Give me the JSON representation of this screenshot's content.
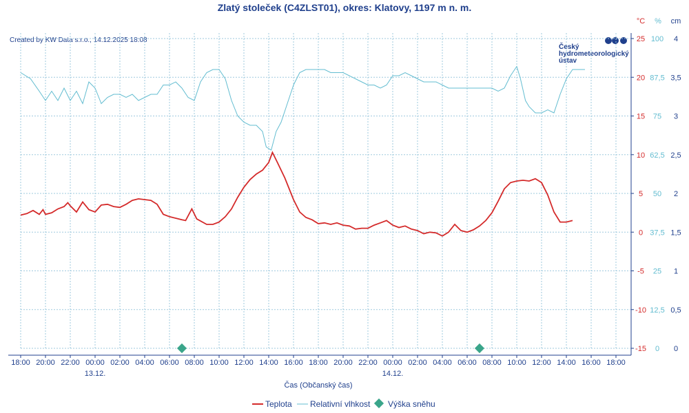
{
  "header": {
    "title": "Zlatý stoleček (C4ZLST01), okres: Klatovy, 1197 m n. m.",
    "created": "Created by KW Data s.r.o., 14.12.2025 18:08",
    "logo_line1": "Český",
    "logo_line2": "hydrometeorologický",
    "logo_line3": "ústav",
    "unit_temp": "°C",
    "unit_hum": "%",
    "unit_snow": "cm"
  },
  "colors": {
    "temp": "#d42a2a",
    "hum": "#62bcd0",
    "snow": "#3aa58a",
    "text": "#1f3f8c",
    "grid": "#9ec9de"
  },
  "chart_data": {
    "type": "line",
    "xlabel": "Čas (Občanský čas)",
    "x_ticks": [
      "18:00",
      "20:00",
      "22:00",
      "00:00",
      "02:00",
      "04:00",
      "06:00",
      "08:00",
      "10:00",
      "12:00",
      "14:00",
      "16:00",
      "18:00",
      "20:00",
      "22:00",
      "00:00",
      "02:00",
      "04:00",
      "06:00",
      "08:00",
      "10:00",
      "12:00",
      "14:00",
      "16:00",
      "18:00"
    ],
    "date_labels": [
      {
        "tick_index": 3,
        "text": "13.12."
      },
      {
        "tick_index": 15,
        "text": "14.12."
      }
    ],
    "x_range_hours": [
      0,
      48
    ],
    "y_axes": {
      "temp": {
        "label": "°C",
        "range": [
          -15,
          25
        ],
        "ticks": [
          "25",
          "20",
          "15",
          "10",
          "5",
          "0",
          "-5",
          "-10",
          "-15"
        ]
      },
      "hum": {
        "label": "%",
        "range": [
          0,
          100
        ],
        "ticks": [
          "100",
          "87,5",
          "75",
          "62,5",
          "50",
          "37,5",
          "25",
          "12,5",
          "0"
        ]
      },
      "snow": {
        "label": "cm",
        "range": [
          0,
          4
        ],
        "ticks": [
          "4",
          "3,5",
          "3",
          "2,5",
          "2",
          "1,5",
          "1",
          "0,5",
          "0"
        ]
      }
    },
    "series": [
      {
        "name": "Teplota",
        "axis": "temp",
        "points": [
          [
            0,
            2.2
          ],
          [
            0.5,
            2.4
          ],
          [
            1,
            2.8
          ],
          [
            1.5,
            2.3
          ],
          [
            1.8,
            2.9
          ],
          [
            2,
            2.3
          ],
          [
            2.5,
            2.5
          ],
          [
            3,
            3.0
          ],
          [
            3.5,
            3.3
          ],
          [
            3.8,
            3.8
          ],
          [
            4,
            3.4
          ],
          [
            4.5,
            2.6
          ],
          [
            5,
            3.9
          ],
          [
            5.5,
            2.9
          ],
          [
            6,
            2.6
          ],
          [
            6.5,
            3.5
          ],
          [
            7,
            3.6
          ],
          [
            7.5,
            3.3
          ],
          [
            8,
            3.2
          ],
          [
            8.5,
            3.6
          ],
          [
            9,
            4.1
          ],
          [
            9.5,
            4.3
          ],
          [
            10,
            4.2
          ],
          [
            10.5,
            4.1
          ],
          [
            11,
            3.6
          ],
          [
            11.5,
            2.3
          ],
          [
            12,
            2.0
          ],
          [
            12.5,
            1.8
          ],
          [
            13,
            1.6
          ],
          [
            13.3,
            1.5
          ],
          [
            13.8,
            3.0
          ],
          [
            14.2,
            1.7
          ],
          [
            15,
            1.0
          ],
          [
            15.5,
            1.0
          ],
          [
            16,
            1.3
          ],
          [
            16.5,
            2.0
          ],
          [
            17,
            3.0
          ],
          [
            17.5,
            4.5
          ],
          [
            18,
            5.8
          ],
          [
            18.5,
            6.8
          ],
          [
            19,
            7.5
          ],
          [
            19.5,
            8.0
          ],
          [
            20,
            9.0
          ],
          [
            20.3,
            10.3
          ],
          [
            20.7,
            9.0
          ],
          [
            21.3,
            7.0
          ],
          [
            22,
            4.2
          ],
          [
            22.5,
            2.6
          ],
          [
            23,
            1.9
          ],
          [
            23.5,
            1.6
          ],
          [
            24,
            1.1
          ],
          [
            24.5,
            1.2
          ],
          [
            25,
            1.0
          ],
          [
            25.5,
            1.2
          ],
          [
            26,
            0.9
          ],
          [
            26.5,
            0.8
          ],
          [
            27,
            0.4
          ],
          [
            27.5,
            0.5
          ],
          [
            28,
            0.5
          ],
          [
            28.5,
            0.9
          ],
          [
            29,
            1.2
          ],
          [
            29.5,
            1.5
          ],
          [
            30,
            0.9
          ],
          [
            30.5,
            0.6
          ],
          [
            31,
            0.8
          ],
          [
            31.5,
            0.4
          ],
          [
            32,
            0.2
          ],
          [
            32.5,
            -0.2
          ],
          [
            33,
            0.0
          ],
          [
            33.5,
            -0.1
          ],
          [
            34,
            -0.5
          ],
          [
            34.5,
            0.0
          ],
          [
            35,
            1.0
          ],
          [
            35.5,
            0.2
          ],
          [
            36,
            0.0
          ],
          [
            36.5,
            0.3
          ],
          [
            37,
            0.8
          ],
          [
            37.5,
            1.5
          ],
          [
            38,
            2.5
          ],
          [
            38.5,
            4.0
          ],
          [
            39,
            5.6
          ],
          [
            39.5,
            6.4
          ],
          [
            40,
            6.6
          ],
          [
            40.5,
            6.7
          ],
          [
            41,
            6.6
          ],
          [
            41.5,
            6.9
          ],
          [
            42,
            6.4
          ],
          [
            42.5,
            4.8
          ],
          [
            43,
            2.6
          ],
          [
            43.5,
            1.3
          ],
          [
            44,
            1.3
          ],
          [
            44.5,
            1.5
          ]
        ]
      },
      {
        "name": "Relativní vlhkost",
        "axis": "hum",
        "points": [
          [
            0,
            89
          ],
          [
            0.8,
            87
          ],
          [
            1.5,
            83
          ],
          [
            2,
            80
          ],
          [
            2.5,
            83
          ],
          [
            3,
            80
          ],
          [
            3.5,
            84
          ],
          [
            4,
            80
          ],
          [
            4.5,
            83
          ],
          [
            5,
            79
          ],
          [
            5.5,
            86
          ],
          [
            6,
            84
          ],
          [
            6.5,
            79
          ],
          [
            7,
            81
          ],
          [
            7.5,
            82
          ],
          [
            8,
            82
          ],
          [
            8.5,
            81
          ],
          [
            9,
            82
          ],
          [
            9.5,
            80
          ],
          [
            10,
            81
          ],
          [
            10.5,
            82
          ],
          [
            11,
            82
          ],
          [
            11.5,
            85
          ],
          [
            12,
            85
          ],
          [
            12.5,
            86
          ],
          [
            13,
            84
          ],
          [
            13.5,
            81
          ],
          [
            14,
            80
          ],
          [
            14.5,
            86
          ],
          [
            15,
            89
          ],
          [
            15.5,
            90
          ],
          [
            16,
            90
          ],
          [
            16.5,
            87
          ],
          [
            17,
            80
          ],
          [
            17.5,
            75
          ],
          [
            18,
            73
          ],
          [
            18.5,
            72
          ],
          [
            19,
            72
          ],
          [
            19.5,
            70
          ],
          [
            19.8,
            65
          ],
          [
            20.2,
            64
          ],
          [
            20.6,
            70
          ],
          [
            21,
            73
          ],
          [
            21.5,
            79
          ],
          [
            22,
            85
          ],
          [
            22.5,
            89
          ],
          [
            23,
            90
          ],
          [
            23.5,
            90
          ],
          [
            24,
            90
          ],
          [
            24.5,
            90
          ],
          [
            25,
            89
          ],
          [
            25.5,
            89
          ],
          [
            26,
            89
          ],
          [
            26.5,
            88
          ],
          [
            27,
            87
          ],
          [
            27.5,
            86
          ],
          [
            28,
            85
          ],
          [
            28.5,
            85
          ],
          [
            29,
            84
          ],
          [
            29.5,
            85
          ],
          [
            30,
            88
          ],
          [
            30.5,
            88
          ],
          [
            31,
            89
          ],
          [
            31.5,
            88
          ],
          [
            32,
            87
          ],
          [
            32.5,
            86
          ],
          [
            33,
            86
          ],
          [
            33.5,
            86
          ],
          [
            34,
            85
          ],
          [
            34.5,
            84
          ],
          [
            35,
            84
          ],
          [
            35.5,
            84
          ],
          [
            36,
            84
          ],
          [
            36.5,
            84
          ],
          [
            37,
            84
          ],
          [
            37.5,
            84
          ],
          [
            38,
            84
          ],
          [
            38.5,
            83
          ],
          [
            39,
            84
          ],
          [
            39.5,
            88
          ],
          [
            40,
            91
          ],
          [
            40.3,
            87
          ],
          [
            40.7,
            80
          ],
          [
            41,
            78
          ],
          [
            41.5,
            76
          ],
          [
            42,
            76
          ],
          [
            42.5,
            77
          ],
          [
            43,
            76
          ],
          [
            43.5,
            82
          ],
          [
            44,
            87
          ],
          [
            44.5,
            90
          ],
          [
            45,
            90
          ],
          [
            45.5,
            90
          ]
        ]
      },
      {
        "name": "Výška sněhu",
        "axis": "snow",
        "points": [
          [
            13,
            0
          ],
          [
            37,
            0
          ]
        ]
      }
    ],
    "legend": [
      "Teplota",
      "Relativní vlhkost",
      "Výška sněhu"
    ]
  }
}
